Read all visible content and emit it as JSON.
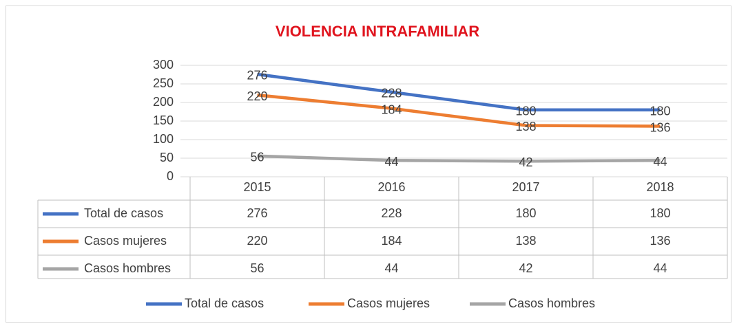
{
  "chart_data": {
    "type": "line",
    "title": "VIOLENCIA INTRAFAMILIAR",
    "categories": [
      "2015",
      "2016",
      "2017",
      "2018"
    ],
    "series": [
      {
        "name": "Total de casos",
        "color": "#4472c4",
        "values": [
          276,
          228,
          180,
          180
        ]
      },
      {
        "name": "Casos mujeres",
        "color": "#ed7d31",
        "values": [
          220,
          184,
          138,
          136
        ]
      },
      {
        "name": "Casos hombres",
        "color": "#a5a5a5",
        "values": [
          56,
          44,
          42,
          44
        ]
      }
    ],
    "ylim": [
      0,
      300
    ],
    "yticks": [
      0,
      50,
      100,
      150,
      200,
      250,
      300
    ],
    "grid": true,
    "data_table": true,
    "legend": "bottom"
  }
}
